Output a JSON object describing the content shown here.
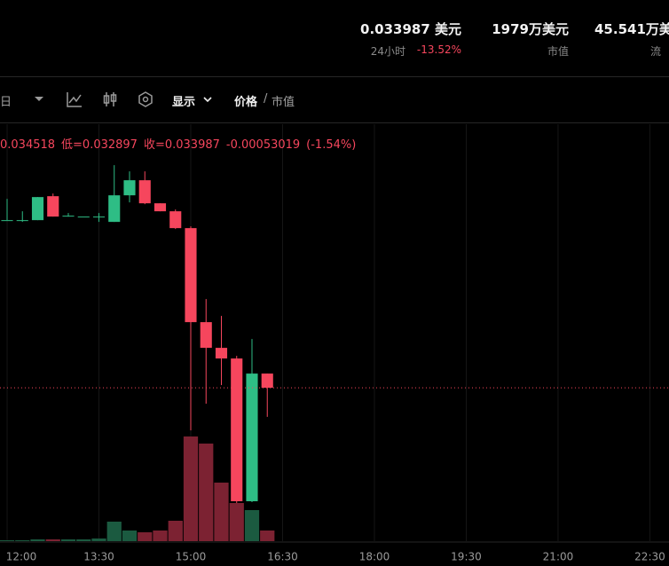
{
  "header": {
    "items": [
      {
        "value": "0.033987 美元",
        "label": "24小时",
        "change": "-13.52%"
      },
      {
        "value": "1979万美元",
        "label": "市值"
      },
      {
        "value": "45.541万美",
        "label": "流"
      }
    ]
  },
  "toolbar": {
    "interval": "日",
    "display": "显示",
    "price": "价格",
    "separator": "/",
    "market_cap": "市值"
  },
  "ohlc_legend": [
    "0.034518",
    "低=0.032897",
    "收=0.033987",
    "-0.00053019",
    "(-1.54%)"
  ],
  "chart_data": {
    "type": "candlestick",
    "x": [
      12,
      12.25,
      12.5,
      12.75,
      13,
      13.25,
      13.5,
      13.75,
      14,
      14.25,
      14.5,
      14.75,
      15,
      15.25,
      15.5,
      15.75,
      16,
      16.25
    ],
    "open": [
      0.040266,
      0.040266,
      0.040266,
      0.041163,
      0.040432,
      0.040399,
      0.040399,
      0.0402,
      0.041196,
      0.041761,
      0.040897,
      0.040598,
      0.039967,
      0.036445,
      0.035482,
      0.035083,
      0.029735,
      0.034518
    ],
    "high": [
      0.041063,
      0.040598,
      0.04113,
      0.041263,
      0.040532,
      0.040399,
      0.040532,
      0.042326,
      0.042093,
      0.042093,
      0.040897,
      0.040665,
      0.040034,
      0.037309,
      0.036678,
      0.035183,
      0.035814,
      0.034518
    ],
    "low": [
      0.040266,
      0.0402,
      0.040266,
      0.040399,
      0.040399,
      0.040399,
      0.0402,
      0.0402,
      0.040931,
      0.040864,
      0.040598,
      0.039934,
      0.032392,
      0.033389,
      0.034087,
      0.029668,
      0.029701,
      0.032897
    ],
    "close": [
      0.040266,
      0.040266,
      0.04113,
      0.040399,
      0.040432,
      0.040399,
      0.040399,
      0.041196,
      0.041761,
      0.040897,
      0.040598,
      0.039967,
      0.036445,
      0.035482,
      0.035083,
      0.029735,
      0.034518,
      0.033987
    ],
    "volume": [
      1,
      1,
      2,
      2,
      2,
      2,
      3,
      22,
      12,
      10,
      12,
      23,
      118,
      110,
      66,
      43,
      35,
      12
    ],
    "up_color": "#2ebd85",
    "down_color": "#f6465d",
    "volume_up_color": "#1b5a40",
    "volume_down_color": "#7c2232",
    "xlim": [
      11.884,
      22.812
    ],
    "ylim": [
      0.02824,
      0.04386
    ],
    "y2lim": [
      0,
      470
    ],
    "xticks": [
      {
        "value": 12,
        "label": "12:00"
      },
      {
        "value": 13.5,
        "label": "13:30"
      },
      {
        "value": 15,
        "label": "15:00"
      },
      {
        "value": 16.5,
        "label": "16:30"
      },
      {
        "value": 18,
        "label": "18:00"
      },
      {
        "value": 19.5,
        "label": "19:30"
      },
      {
        "value": 21,
        "label": "21:00"
      },
      {
        "value": 22.5,
        "label": "22:30"
      }
    ],
    "grid": true
  }
}
